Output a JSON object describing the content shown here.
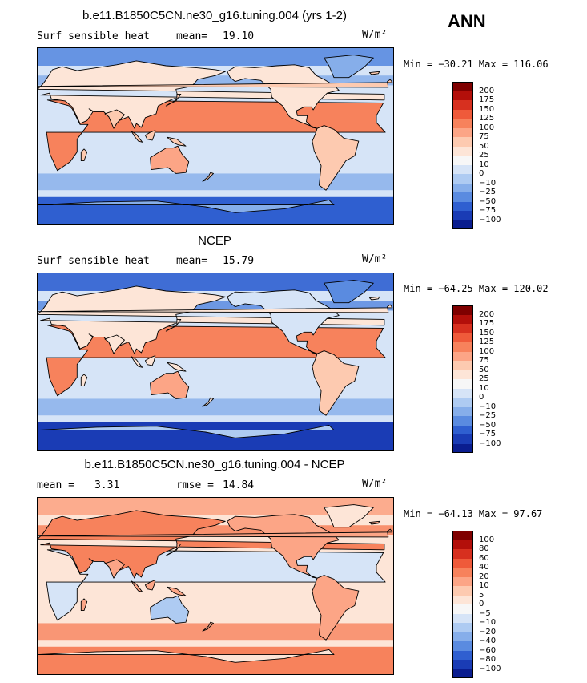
{
  "season": "ANN",
  "panels": [
    {
      "title": "b.e11.B1850C5CN.ne30_g16.tuning.004 (yrs 1-2)",
      "left_label": "Surf sensible heat",
      "stat_label": "mean=",
      "stat_value": "19.10",
      "units": "W/m²",
      "min_max": "Min = −30.21 Max = 116.06",
      "colorbar": {
        "colors": [
          "#7f0000",
          "#b30f0a",
          "#d7301f",
          "#ef5a3a",
          "#f7825c",
          "#fca586",
          "#fdcab0",
          "#fde5d7",
          "#f7f7f7",
          "#d6e4f7",
          "#aecbf2",
          "#86aeea",
          "#5a8be0",
          "#2f5fd0",
          "#1a3cb5",
          "#0a1d8f"
        ],
        "tick_labels": [
          "200",
          "175",
          "150",
          "125",
          "100",
          "75",
          "50",
          "25",
          "10",
          "0",
          "−10",
          "−25",
          "−50",
          "−75",
          "−100"
        ]
      },
      "map_field": "model"
    },
    {
      "title": "NCEP",
      "left_label": "Surf sensible heat",
      "stat_label": "mean=",
      "stat_value": "15.79",
      "units": "W/m²",
      "min_max": "Min = −64.25 Max = 120.02",
      "colorbar": {
        "colors": [
          "#7f0000",
          "#b30f0a",
          "#d7301f",
          "#ef5a3a",
          "#f7825c",
          "#fca586",
          "#fdcab0",
          "#fde5d7",
          "#f7f7f7",
          "#d6e4f7",
          "#aecbf2",
          "#86aeea",
          "#5a8be0",
          "#2f5fd0",
          "#1a3cb5",
          "#0a1d8f"
        ],
        "tick_labels": [
          "200",
          "175",
          "150",
          "125",
          "100",
          "75",
          "50",
          "25",
          "10",
          "0",
          "−10",
          "−25",
          "−50",
          "−75",
          "−100"
        ]
      },
      "map_field": "obs"
    },
    {
      "title": "b.e11.B1850C5CN.ne30_g16.tuning.004 - NCEP",
      "left_label": "mean =",
      "left_value": "3.31",
      "stat_label": "rmse =",
      "stat_value": "14.84",
      "units": "W/m²",
      "min_max": "Min = −64.13 Max =  97.67",
      "colorbar": {
        "colors": [
          "#7f0000",
          "#b30f0a",
          "#d7301f",
          "#ef5a3a",
          "#f7825c",
          "#fca586",
          "#fdcab0",
          "#fde5d7",
          "#f7f7f7",
          "#d6e4f7",
          "#aecbf2",
          "#86aeea",
          "#5a8be0",
          "#2f5fd0",
          "#1a3cb5",
          "#0a1d8f"
        ],
        "tick_labels": [
          "100",
          "80",
          "60",
          "40",
          "20",
          "10",
          "5",
          "0",
          "−5",
          "−10",
          "−20",
          "−40",
          "−60",
          "−80",
          "−100"
        ]
      },
      "map_field": "diff"
    }
  ]
}
